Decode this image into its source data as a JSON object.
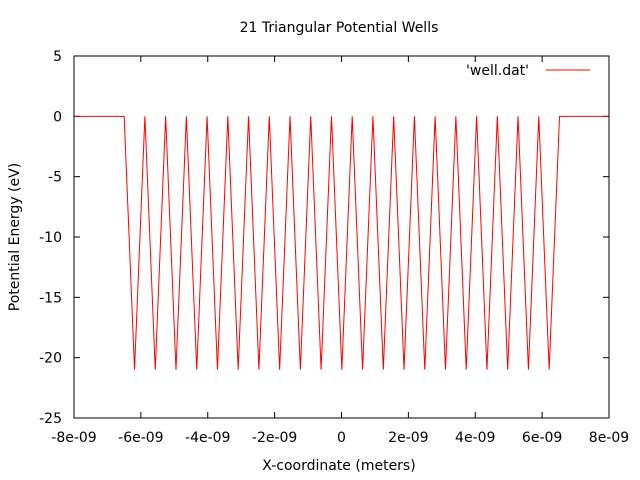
{
  "chart_data": {
    "type": "line",
    "title": "21 Triangular Potential Wells",
    "xlabel": "X-coordinate (meters)",
    "ylabel": "Potential Energy (eV)",
    "xlim": [
      -8e-09,
      8e-09
    ],
    "ylim": [
      -25,
      5
    ],
    "x_ticks": [
      -8e-09,
      -6e-09,
      -4e-09,
      -2e-09,
      0,
      2e-09,
      4e-09,
      6e-09,
      8e-09
    ],
    "x_tick_labels": [
      "-8e-09",
      "-6e-09",
      "-4e-09",
      "-2e-09",
      "0",
      "2e-09",
      "4e-09",
      "6e-09",
      "8e-09"
    ],
    "y_ticks": [
      5,
      0,
      -5,
      -10,
      -15,
      -20,
      -25
    ],
    "y_tick_labels": [
      "5",
      "0",
      "-5",
      "-10",
      "-15",
      "-20",
      "-25"
    ],
    "grid": false,
    "legend_position": "top-right",
    "series": [
      {
        "name": "'well.dat'",
        "color": "#ff0000",
        "x": [
          -8e-09,
          -6.5e-09,
          -6.19e-09,
          -5.88e-09,
          -5.57e-09,
          -5.26e-09,
          -4.95e-09,
          -4.64e-09,
          -4.33e-09,
          -4.02e-09,
          -3.71e-09,
          -3.4e-09,
          -3.09e-09,
          -2.78e-09,
          -2.47e-09,
          -2.16e-09,
          -1.85e-09,
          -1.54e-09,
          -1.23e-09,
          -9.2e-10,
          -6.1e-10,
          -3e-10,
          1e-11,
          3.2e-10,
          6.3e-10,
          9.4e-10,
          1.25e-09,
          1.56e-09,
          1.87e-09,
          2.18e-09,
          2.49e-09,
          2.8e-09,
          3.11e-09,
          3.42e-09,
          3.73e-09,
          4.04e-09,
          4.35e-09,
          4.66e-09,
          4.97e-09,
          5.28e-09,
          5.59e-09,
          5.9e-09,
          6.21e-09,
          6.52e-09,
          8e-09
        ],
        "y": [
          0,
          0,
          -21,
          0,
          -21,
          0,
          -21,
          0,
          -21,
          0,
          -21,
          0,
          -21,
          0,
          -21,
          0,
          -21,
          0,
          -21,
          0,
          -21,
          0,
          -21,
          0,
          -21,
          0,
          -21,
          0,
          -21,
          0,
          -21,
          0,
          -21,
          0,
          -21,
          0,
          -21,
          0,
          -21,
          0,
          -21,
          0,
          -21,
          0,
          0
        ]
      }
    ]
  }
}
